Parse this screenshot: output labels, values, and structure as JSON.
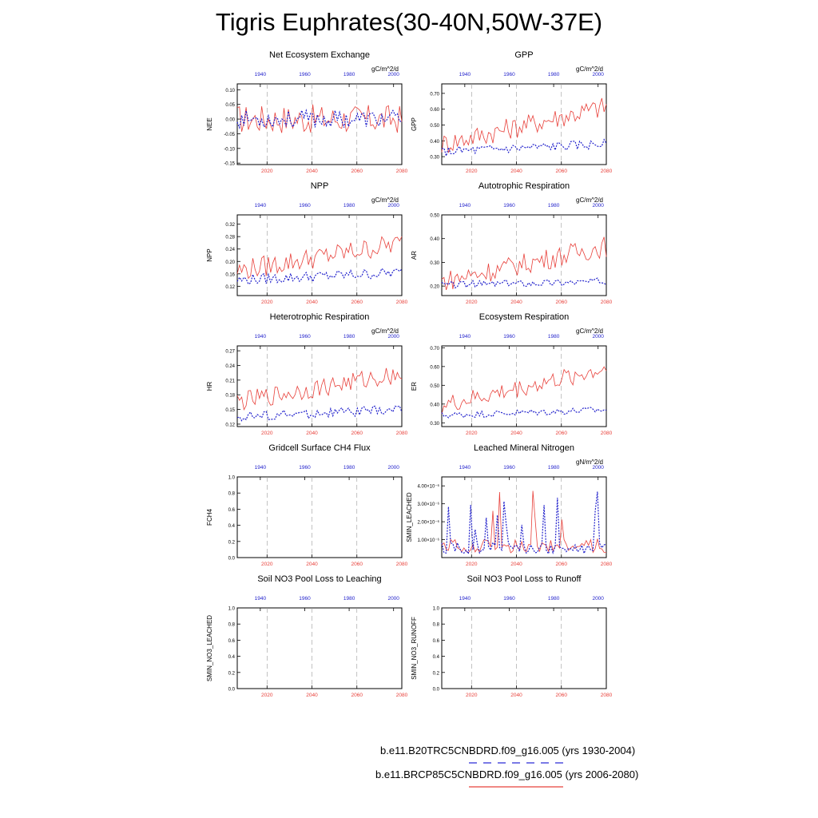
{
  "title": "Tigris Euphrates(30-40N,50W-37E)",
  "legend": {
    "historical": {
      "label": "b.e11.B20TRC5CNBDRD.f09_g16.005 (yrs 1930-2004)",
      "color": "#2b2bd6",
      "style": "dashed"
    },
    "rcp85": {
      "label": "b.e11.BRCP85C5CNBDRD.f09_g16.005 (yrs 2006-2080)",
      "color": "#e8403a",
      "style": "solid"
    }
  },
  "colors": {
    "red": "#e8403a",
    "blue": "#2222cc",
    "grid": "#999999"
  },
  "chart_data": [
    {
      "id": "nee",
      "type": "line",
      "title": "Net Ecosystem Exchange",
      "units": "gC/m^2/d",
      "ylabel": "NEE",
      "ylim": [
        -0.155,
        0.12
      ],
      "yticks": [
        -0.15,
        -0.1,
        -0.05,
        0.0,
        0.05,
        0.1
      ],
      "ytick_labels": [
        "-0.15",
        "-0.10",
        "-0.05",
        "0.00",
        "0.05",
        "0.10"
      ],
      "red_xticks": [
        "2020",
        "2040",
        "2060",
        "2080"
      ],
      "blue_xticks": [
        "1940",
        "1960",
        "1980",
        "2000"
      ],
      "red_base": 0.0,
      "red_trend": 0.0,
      "red_amp": 0.05,
      "blue_base": 0.0,
      "blue_trend": 0.0,
      "blue_amp": 0.03,
      "blue_spike": 0.0
    },
    {
      "id": "gpp",
      "type": "line",
      "title": "GPP",
      "units": "gC/m^2/d",
      "ylabel": "GPP",
      "ylim": [
        0.25,
        0.76
      ],
      "yticks": [
        0.3,
        0.4,
        0.5,
        0.6,
        0.7
      ],
      "ytick_labels": [
        "0.30",
        "0.40",
        "0.50",
        "0.60",
        "0.70"
      ],
      "red_xticks": [
        "2020",
        "2040",
        "2060",
        "2080"
      ],
      "blue_xticks": [
        "1940",
        "1960",
        "1980",
        "2000"
      ],
      "red_base": 0.38,
      "red_trend": 0.24,
      "red_amp": 0.07,
      "blue_base": 0.33,
      "blue_trend": 0.05,
      "blue_amp": 0.03,
      "blue_spike": 0.0
    },
    {
      "id": "npp",
      "type": "line",
      "title": "NPP",
      "units": "gC/m^2/d",
      "ylabel": "NPP",
      "ylim": [
        0.09,
        0.35
      ],
      "yticks": [
        0.12,
        0.16,
        0.2,
        0.24,
        0.28,
        0.32
      ],
      "ytick_labels": [
        "0.12",
        "0.16",
        "0.20",
        "0.24",
        "0.28",
        "0.32"
      ],
      "red_xticks": [
        "2020",
        "2040",
        "2060",
        "2080"
      ],
      "blue_xticks": [
        "1940",
        "1960",
        "1980",
        "2000"
      ],
      "red_base": 0.17,
      "red_trend": 0.09,
      "red_amp": 0.035,
      "blue_base": 0.14,
      "blue_trend": 0.025,
      "blue_amp": 0.017,
      "blue_spike": 0.0
    },
    {
      "id": "ar",
      "type": "line",
      "title": "Autotrophic Respiration",
      "units": "gC/m^2/d",
      "ylabel": "AR",
      "ylim": [
        0.16,
        0.5
      ],
      "yticks": [
        0.2,
        0.3,
        0.4,
        0.5
      ],
      "ytick_labels": [
        "0.20",
        "0.30",
        "0.40",
        "0.50"
      ],
      "red_xticks": [
        "2020",
        "2040",
        "2060",
        "2080"
      ],
      "blue_xticks": [
        "1940",
        "1960",
        "1980",
        "2000"
      ],
      "red_base": 0.22,
      "red_trend": 0.15,
      "red_amp": 0.045,
      "blue_base": 0.205,
      "blue_trend": 0.015,
      "blue_amp": 0.015,
      "blue_spike": 0.0
    },
    {
      "id": "hr",
      "type": "line",
      "title": "Heterotrophic Respiration",
      "units": "gC/m^2/d",
      "ylabel": "HR",
      "ylim": [
        0.115,
        0.28
      ],
      "yticks": [
        0.12,
        0.15,
        0.18,
        0.21,
        0.24,
        0.27
      ],
      "ytick_labels": [
        "0.12",
        "0.15",
        "0.18",
        "0.21",
        "0.24",
        "0.27"
      ],
      "red_xticks": [
        "2020",
        "2040",
        "2060",
        "2080"
      ],
      "blue_xticks": [
        "1940",
        "1960",
        "1980",
        "2000"
      ],
      "red_base": 0.165,
      "red_trend": 0.06,
      "red_amp": 0.02,
      "blue_base": 0.135,
      "blue_trend": 0.015,
      "blue_amp": 0.01,
      "blue_spike": 0.0
    },
    {
      "id": "er",
      "type": "line",
      "title": "Ecosystem Respiration",
      "units": "gC/m^2/d",
      "ylabel": "ER",
      "ylim": [
        0.28,
        0.71
      ],
      "yticks": [
        0.3,
        0.4,
        0.5,
        0.6,
        0.7
      ],
      "ytick_labels": [
        "0.30",
        "0.40",
        "0.50",
        "0.60",
        "0.70"
      ],
      "red_xticks": [
        "2020",
        "2040",
        "2060",
        "2080"
      ],
      "blue_xticks": [
        "1940",
        "1960",
        "1980",
        "2000"
      ],
      "red_base": 0.39,
      "red_trend": 0.2,
      "red_amp": 0.05,
      "blue_base": 0.34,
      "blue_trend": 0.03,
      "blue_amp": 0.018,
      "blue_spike": 0.0
    },
    {
      "id": "fch4",
      "type": "line",
      "title": "Gridcell Surface CH4 Flux",
      "units": "",
      "ylabel": "FCH4",
      "ylim": [
        0,
        1
      ],
      "yticks": [
        0.0,
        0.2,
        0.4,
        0.6,
        0.8,
        1.0
      ],
      "ytick_labels": [
        "0.0",
        "0.2",
        "0.4",
        "0.6",
        "0.8",
        "1.0"
      ],
      "red_xticks": [
        "2020",
        "2040",
        "2060",
        "2080"
      ],
      "blue_xticks": [
        "1940",
        "1960",
        "1980",
        "2000"
      ],
      "empty": true
    },
    {
      "id": "sminleach",
      "type": "line",
      "title": "Leached Mineral Nitrogen",
      "units": "gN/m^2/d",
      "ylabel": "SMIN_LEACHED",
      "ylim": [
        0,
        4.5e-06
      ],
      "yticks": [
        1e-06,
        2e-06,
        3e-06,
        4e-06
      ],
      "ytick_labels": [
        "1.00×10⁻⁶",
        "2.00×10⁻⁶",
        "3.00×10⁻⁶",
        "4.00×10⁻⁶"
      ],
      "red_xticks": [
        "2020",
        "2040",
        "2060",
        "2080"
      ],
      "blue_xticks": [
        "1940",
        "1960",
        "1980",
        "2000"
      ],
      "red_base": 5e-07,
      "red_trend": 0,
      "red_amp": 5e-07,
      "blue_base": 4e-07,
      "blue_trend": 0,
      "blue_amp": 4e-07,
      "blue_spike": 2.5e-06,
      "spiky": true
    },
    {
      "id": "no3leach",
      "type": "line",
      "title": "Soil NO3 Pool Loss to Leaching",
      "units": "",
      "ylabel": "SMIN_NO3_LEACHED",
      "ylim": [
        0,
        1
      ],
      "yticks": [
        0.0,
        0.2,
        0.4,
        0.6,
        0.8,
        1.0
      ],
      "ytick_labels": [
        "0.0",
        "0.2",
        "0.4",
        "0.6",
        "0.8",
        "1.0"
      ],
      "red_xticks": [
        "2020",
        "2040",
        "2060",
        "2080"
      ],
      "blue_xticks": [
        "1940",
        "1960",
        "1980",
        "2000"
      ],
      "empty": true
    },
    {
      "id": "no3runoff",
      "type": "line",
      "title": "Soil NO3 Pool Loss to Runoff",
      "units": "",
      "ylabel": "SMIN_NO3_RUNOFF",
      "ylim": [
        0,
        1
      ],
      "yticks": [
        0.0,
        0.2,
        0.4,
        0.6,
        0.8,
        1.0
      ],
      "ytick_labels": [
        "0.0",
        "0.2",
        "0.4",
        "0.6",
        "0.8",
        "1.0"
      ],
      "red_xticks": [
        "2020",
        "2040",
        "2060",
        "2080"
      ],
      "blue_xticks": [
        "1940",
        "1960",
        "1980",
        "2000"
      ],
      "empty": true
    }
  ]
}
